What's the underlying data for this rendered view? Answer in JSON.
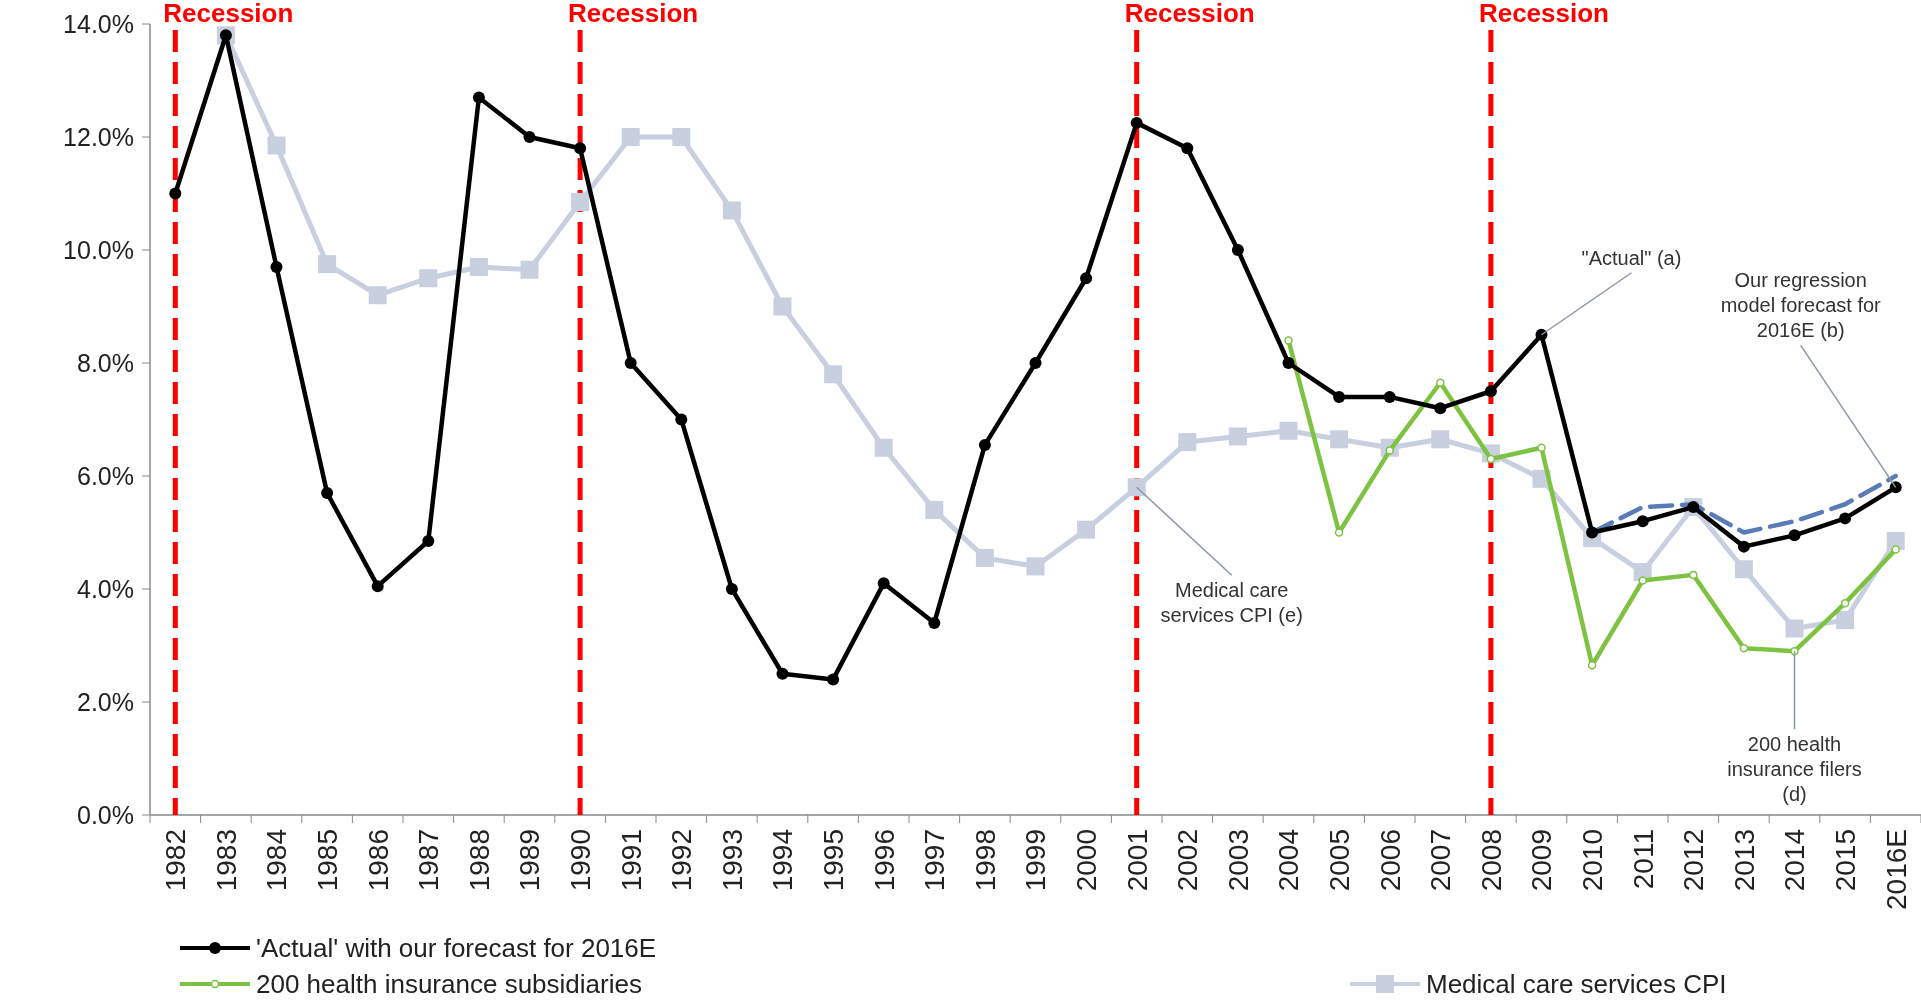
{
  "chart_data": {
    "type": "line",
    "categories": [
      "1982",
      "1983",
      "1984",
      "1985",
      "1986",
      "1987",
      "1988",
      "1989",
      "1990",
      "1991",
      "1992",
      "1993",
      "1994",
      "1995",
      "1996",
      "1997",
      "1998",
      "1999",
      "2000",
      "2001",
      "2002",
      "2003",
      "2004",
      "2005",
      "2006",
      "2007",
      "2008",
      "2009",
      "2010",
      "2011",
      "2012",
      "2013",
      "2014",
      "2015",
      "2016E"
    ],
    "series": [
      {
        "name": "'Actual' with our forecast for 2016E",
        "color": "#000000",
        "marker": "circle",
        "values": [
          11.0,
          13.8,
          9.7,
          5.7,
          4.05,
          4.85,
          12.7,
          12.0,
          11.8,
          8.0,
          7.0,
          4.0,
          2.5,
          2.4,
          4.1,
          3.4,
          6.55,
          8.0,
          9.5,
          12.25,
          11.8,
          10.0,
          8.0,
          7.4,
          7.4,
          7.2,
          7.5,
          8.5,
          5.0,
          5.2,
          5.45,
          4.75,
          4.95,
          5.25,
          5.8
        ]
      },
      {
        "color": "#5b7bb8",
        "marker": "none",
        "line_style": "dashed",
        "values": [
          null,
          null,
          null,
          null,
          null,
          null,
          null,
          null,
          null,
          null,
          null,
          null,
          null,
          null,
          null,
          null,
          null,
          null,
          null,
          null,
          null,
          null,
          null,
          null,
          null,
          null,
          null,
          null,
          5.0,
          5.45,
          5.5,
          5.0,
          5.2,
          5.5,
          6.0
        ]
      },
      {
        "name": "200 health insurance subsidiaries",
        "color": "#7ec242",
        "marker": "circle",
        "values": [
          null,
          null,
          null,
          null,
          null,
          null,
          null,
          null,
          null,
          null,
          null,
          null,
          null,
          null,
          null,
          null,
          null,
          null,
          null,
          null,
          null,
          null,
          8.4,
          5.0,
          6.45,
          7.65,
          6.3,
          6.5,
          2.65,
          4.15,
          4.25,
          2.95,
          2.9,
          3.75,
          4.7
        ]
      },
      {
        "name": "Medical care services CPI",
        "color": "#c8d0e0",
        "marker": "square",
        "values": [
          null,
          13.8,
          11.85,
          9.75,
          9.2,
          9.5,
          9.7,
          9.65,
          10.85,
          12.0,
          12.0,
          10.7,
          9.0,
          7.8,
          6.5,
          5.4,
          4.55,
          4.4,
          5.05,
          5.8,
          6.6,
          6.7,
          6.8,
          6.65,
          6.5,
          6.65,
          6.4,
          5.95,
          4.9,
          4.3,
          5.45,
          4.35,
          3.3,
          3.45,
          4.85
        ]
      }
    ],
    "ylim": [
      0,
      14
    ],
    "yticks": [
      {
        "value": 0,
        "label": "0.0%"
      },
      {
        "value": 2,
        "label": "2.0%"
      },
      {
        "value": 4,
        "label": "4.0%"
      },
      {
        "value": 6,
        "label": "6.0%"
      },
      {
        "value": 8,
        "label": "8.0%"
      },
      {
        "value": 10,
        "label": "10.0%"
      },
      {
        "value": 12,
        "label": "12.0%"
      },
      {
        "value": 14,
        "label": "14.0%"
      }
    ],
    "ref_lines": [
      {
        "axis": "x",
        "value": "1982",
        "label": "Recession",
        "color": "#ff0000",
        "line_style": "dashed"
      },
      {
        "axis": "x",
        "value": "1990",
        "label": "Recession",
        "color": "#ff0000",
        "line_style": "dashed"
      },
      {
        "axis": "x",
        "value": "2001",
        "label": "Recession",
        "color": "#ff0000",
        "line_style": "dashed"
      },
      {
        "axis": "x",
        "value": "2008",
        "label": "Recession",
        "color": "#ff0000",
        "line_style": "dashed"
      }
    ],
    "annotations": [
      {
        "text": "\"Actual\" (a)",
        "x": "2009",
        "y": 8.5
      },
      {
        "text": "Our regression model forecast for 2016E (b)",
        "x": "2016E",
        "y": 5.8
      },
      {
        "text": "Medical care services CPI (e)",
        "x": "2001",
        "y": 5.8
      },
      {
        "text": "200 health insurance filers (d)",
        "x": "2014",
        "y": 2.9
      }
    ],
    "legend": "bottom",
    "grid": false
  }
}
